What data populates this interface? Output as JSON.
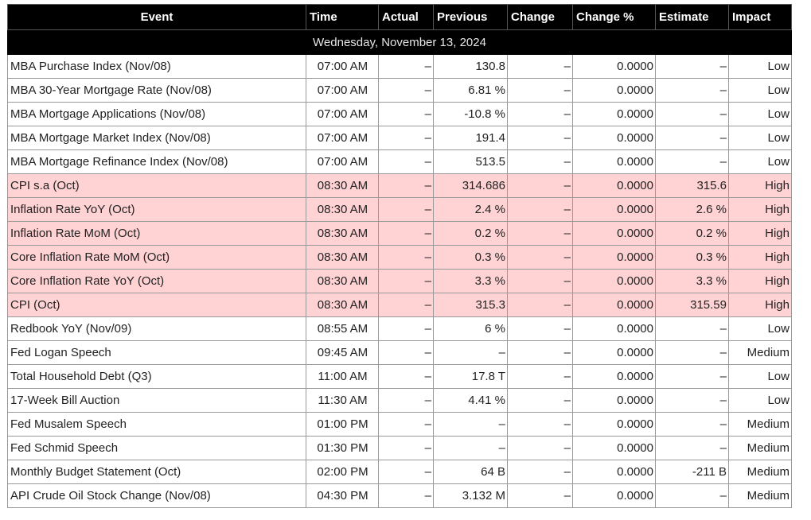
{
  "columns": [
    "Event",
    "Time",
    "Actual",
    "Previous",
    "Change",
    "Change %",
    "Estimate",
    "Impact"
  ],
  "date_header": "Wednesday, November 13, 2024",
  "rows": [
    {
      "event": "MBA Purchase Index (Nov/08)",
      "time": "07:00 AM",
      "actual": "–",
      "previous": "130.8",
      "change": "–",
      "change_pct": "0.0000",
      "estimate": "–",
      "impact": "Low"
    },
    {
      "event": "MBA 30-Year Mortgage Rate (Nov/08)",
      "time": "07:00 AM",
      "actual": "–",
      "previous": "6.81 %",
      "change": "–",
      "change_pct": "0.0000",
      "estimate": "–",
      "impact": "Low"
    },
    {
      "event": "MBA Mortgage Applications (Nov/08)",
      "time": "07:00 AM",
      "actual": "–",
      "previous": "-10.8 %",
      "change": "–",
      "change_pct": "0.0000",
      "estimate": "–",
      "impact": "Low"
    },
    {
      "event": "MBA Mortgage Market Index (Nov/08)",
      "time": "07:00 AM",
      "actual": "–",
      "previous": "191.4",
      "change": "–",
      "change_pct": "0.0000",
      "estimate": "–",
      "impact": "Low"
    },
    {
      "event": "MBA Mortgage Refinance Index (Nov/08)",
      "time": "07:00 AM",
      "actual": "–",
      "previous": "513.5",
      "change": "–",
      "change_pct": "0.0000",
      "estimate": "–",
      "impact": "Low"
    },
    {
      "event": "CPI s.a (Oct)",
      "time": "08:30 AM",
      "actual": "–",
      "previous": "314.686",
      "change": "–",
      "change_pct": "0.0000",
      "estimate": "315.6",
      "impact": "High"
    },
    {
      "event": "Inflation Rate YoY (Oct)",
      "time": "08:30 AM",
      "actual": "–",
      "previous": "2.4 %",
      "change": "–",
      "change_pct": "0.0000",
      "estimate": "2.6 %",
      "impact": "High"
    },
    {
      "event": "Inflation Rate MoM (Oct)",
      "time": "08:30 AM",
      "actual": "–",
      "previous": "0.2 %",
      "change": "–",
      "change_pct": "0.0000",
      "estimate": "0.2 %",
      "impact": "High"
    },
    {
      "event": "Core Inflation Rate MoM (Oct)",
      "time": "08:30 AM",
      "actual": "–",
      "previous": "0.3 %",
      "change": "–",
      "change_pct": "0.0000",
      "estimate": "0.3 %",
      "impact": "High"
    },
    {
      "event": "Core Inflation Rate YoY (Oct)",
      "time": "08:30 AM",
      "actual": "–",
      "previous": "3.3 %",
      "change": "–",
      "change_pct": "0.0000",
      "estimate": "3.3 %",
      "impact": "High"
    },
    {
      "event": "CPI (Oct)",
      "time": "08:30 AM",
      "actual": "–",
      "previous": "315.3",
      "change": "–",
      "change_pct": "0.0000",
      "estimate": "315.59",
      "impact": "High"
    },
    {
      "event": "Redbook YoY (Nov/09)",
      "time": "08:55 AM",
      "actual": "–",
      "previous": "6 %",
      "change": "–",
      "change_pct": "0.0000",
      "estimate": "–",
      "impact": "Low"
    },
    {
      "event": "Fed Logan Speech",
      "time": "09:45 AM",
      "actual": "–",
      "previous": "–",
      "change": "–",
      "change_pct": "0.0000",
      "estimate": "–",
      "impact": "Medium"
    },
    {
      "event": "Total Household Debt (Q3)",
      "time": "11:00 AM",
      "actual": "–",
      "previous": "17.8 T",
      "change": "–",
      "change_pct": "0.0000",
      "estimate": "–",
      "impact": "Low"
    },
    {
      "event": "17-Week Bill Auction",
      "time": "11:30 AM",
      "actual": "–",
      "previous": "4.41 %",
      "change": "–",
      "change_pct": "0.0000",
      "estimate": "–",
      "impact": "Low"
    },
    {
      "event": "Fed Musalem Speech",
      "time": "01:00 PM",
      "actual": "–",
      "previous": "–",
      "change": "–",
      "change_pct": "0.0000",
      "estimate": "–",
      "impact": "Medium"
    },
    {
      "event": "Fed Schmid Speech",
      "time": "01:30 PM",
      "actual": "–",
      "previous": "–",
      "change": "–",
      "change_pct": "0.0000",
      "estimate": "–",
      "impact": "Medium"
    },
    {
      "event": "Monthly Budget Statement (Oct)",
      "time": "02:00 PM",
      "actual": "–",
      "previous": "64 B",
      "change": "–",
      "change_pct": "0.0000",
      "estimate": "-211 B",
      "impact": "Medium"
    },
    {
      "event": "API Crude Oil Stock Change (Nov/08)",
      "time": "04:30 PM",
      "actual": "–",
      "previous": "3.132 M",
      "change": "–",
      "change_pct": "0.0000",
      "estimate": "–",
      "impact": "Medium"
    }
  ],
  "colors": {
    "header_bg": "#000000",
    "header_text": "#ffffff",
    "high_impact_row": "#ffd2d4"
  }
}
